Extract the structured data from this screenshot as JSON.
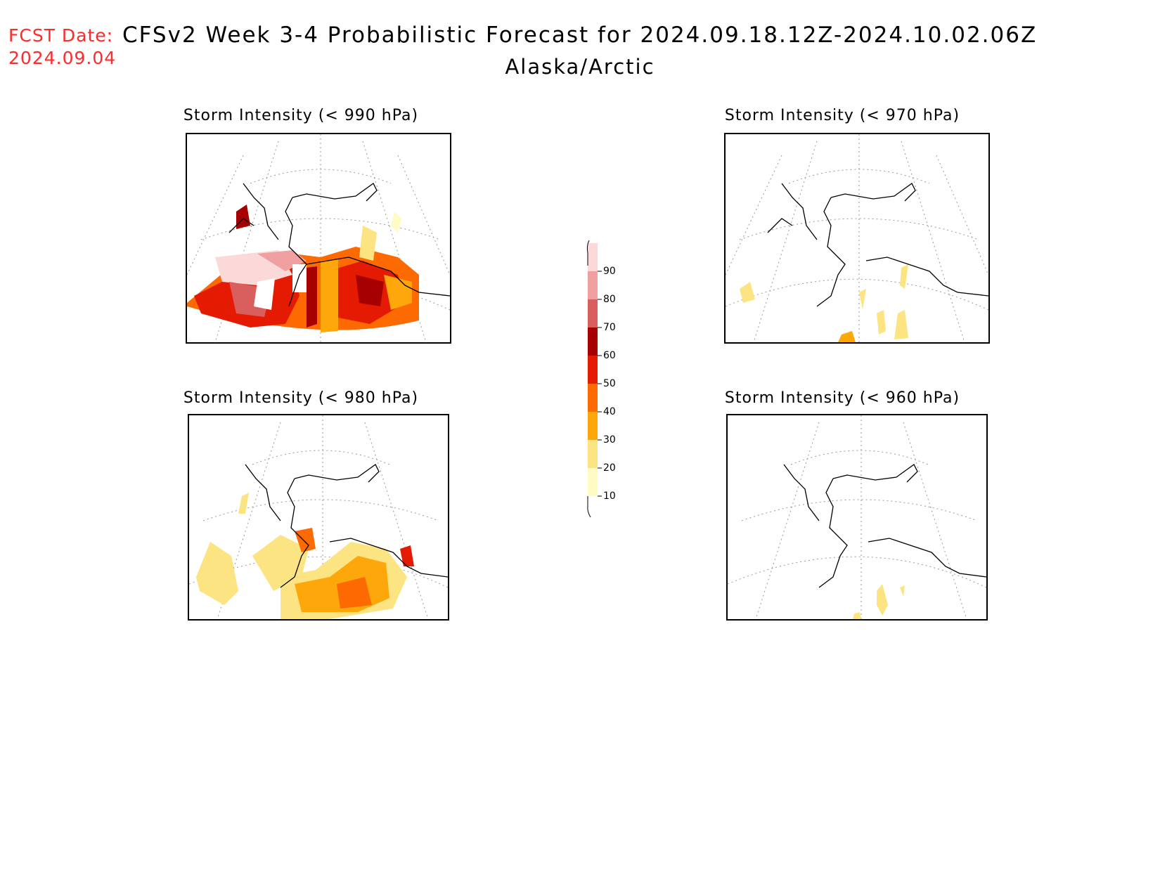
{
  "header": {
    "fcst_label": "FCST Date:",
    "fcst_date": "2024.09.04",
    "title": "CFSv2 Week 3-4 Probabilistic Forecast for 2024.09.18.12Z-2024.10.02.06Z",
    "subtitle": "Alaska/Arctic"
  },
  "panels": [
    {
      "id": "p990",
      "title": "Storm Intensity (< 990 hPa)",
      "coverage": "high"
    },
    {
      "id": "p970",
      "title": "Storm Intensity (< 970 hPa)",
      "coverage": "low"
    },
    {
      "id": "p980",
      "title": "Storm Intensity (< 980 hPa)",
      "coverage": "medium"
    },
    {
      "id": "p960",
      "title": "Storm Intensity (< 960 hPa)",
      "coverage": "very-low"
    }
  ],
  "colorbar": {
    "levels": [
      "10",
      "20",
      "30",
      "40",
      "50",
      "60",
      "70",
      "80",
      "90"
    ],
    "colors": [
      "#fffbc2",
      "#fde483",
      "#fda70a",
      "#fd6a02",
      "#e51a02",
      "#a60000",
      "#d95f5f",
      "#f0a0a0",
      "#fbd9d9"
    ]
  }
}
